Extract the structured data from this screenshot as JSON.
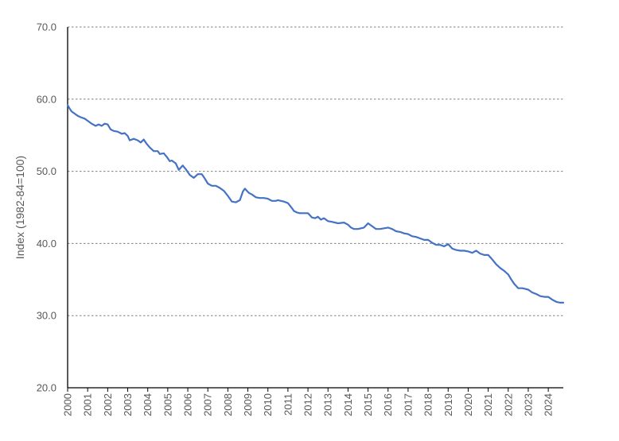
{
  "chart_data": {
    "type": "line",
    "title": "",
    "xlabel": "",
    "ylabel": "Index (1982-84=100)",
    "ylim": [
      20.0,
      70.0
    ],
    "y_ticks": [
      "20.0",
      "30.0",
      "40.0",
      "50.0",
      "60.0",
      "70.0"
    ],
    "x_ticks": [
      "2000",
      "2001",
      "2002",
      "2003",
      "2004",
      "2005",
      "2006",
      "2007",
      "2008",
      "2009",
      "2010",
      "2011",
      "2012",
      "2013",
      "2014",
      "2015",
      "2016",
      "2017",
      "2018",
      "2019",
      "2020",
      "2021",
      "2022",
      "2023",
      "2024"
    ],
    "grid": "horizontal dashed",
    "legend": "none",
    "line_color": "#4472C4",
    "series": [
      {
        "x": [
          2000.0,
          2000.1,
          2000.2,
          2000.35,
          2000.5,
          2000.65,
          2000.85,
          2001.0,
          2001.2,
          2001.4,
          2001.55,
          2001.7,
          2001.85,
          2002.0,
          2002.15,
          2002.3,
          2002.5,
          2002.7,
          2002.85,
          2003.0,
          2003.1,
          2003.3,
          2003.5,
          2003.65,
          2003.8,
          2003.95,
          2004.1,
          2004.3,
          2004.5,
          2004.6,
          2004.8,
          2004.95,
          2005.1,
          2005.2,
          2005.4,
          2005.55,
          2005.75,
          2005.9,
          2006.1,
          2006.3,
          2006.5,
          2006.7,
          2006.85,
          2007.0,
          2007.2,
          2007.4,
          2007.6,
          2007.8,
          2008.0,
          2008.2,
          2008.4,
          2008.6,
          2008.75,
          2008.85,
          2008.95,
          2009.05,
          2009.2,
          2009.4,
          2009.6,
          2009.8,
          2010.0,
          2010.2,
          2010.4,
          2010.5,
          2010.8,
          2011.0,
          2011.2,
          2011.3,
          2011.45,
          2011.6,
          2011.8,
          2012.0,
          2012.2,
          2012.35,
          2012.5,
          2012.65,
          2012.8,
          2013.0,
          2013.2,
          2013.5,
          2013.8,
          2014.0,
          2014.15,
          2014.3,
          2014.5,
          2014.8,
          2015.0,
          2015.2,
          2015.4,
          2015.6,
          2015.8,
          2016.0,
          2016.2,
          2016.4,
          2016.6,
          2016.8,
          2017.0,
          2017.2,
          2017.4,
          2017.6,
          2017.8,
          2018.0,
          2018.2,
          2018.4,
          2018.6,
          2018.8,
          2019.0,
          2019.2,
          2019.4,
          2019.6,
          2019.8,
          2020.0,
          2020.2,
          2020.4,
          2020.6,
          2020.8,
          2021.0,
          2021.2,
          2021.4,
          2021.6,
          2021.8,
          2022.0,
          2022.15,
          2022.3,
          2022.5,
          2022.7,
          2022.85,
          2023.0,
          2023.2,
          2023.4,
          2023.6,
          2023.8,
          2024.0,
          2024.2,
          2024.4,
          2024.6,
          2024.75
        ],
        "values": [
          59.2,
          58.7,
          58.3,
          58.0,
          57.7,
          57.5,
          57.3,
          57.0,
          56.6,
          56.3,
          56.5,
          56.3,
          56.6,
          56.5,
          55.8,
          55.6,
          55.5,
          55.2,
          55.3,
          54.9,
          54.3,
          54.5,
          54.3,
          54.0,
          54.4,
          53.8,
          53.3,
          52.8,
          52.8,
          52.4,
          52.5,
          52.0,
          51.4,
          51.5,
          51.1,
          50.2,
          50.8,
          50.3,
          49.5,
          49.1,
          49.6,
          49.6,
          49.0,
          48.3,
          48.0,
          48.0,
          47.7,
          47.3,
          46.6,
          45.8,
          45.7,
          46.0,
          47.2,
          47.6,
          47.3,
          47.0,
          46.8,
          46.4,
          46.3,
          46.3,
          46.2,
          45.9,
          45.9,
          46.0,
          45.8,
          45.6,
          44.9,
          44.5,
          44.3,
          44.2,
          44.2,
          44.2,
          43.6,
          43.5,
          43.7,
          43.3,
          43.5,
          43.1,
          43.0,
          42.8,
          42.9,
          42.6,
          42.2,
          42.0,
          42.0,
          42.2,
          42.8,
          42.4,
          42.0,
          42.0,
          42.1,
          42.2,
          42.0,
          41.7,
          41.6,
          41.4,
          41.3,
          41.0,
          40.9,
          40.7,
          40.5,
          40.5,
          40.1,
          39.8,
          39.8,
          39.6,
          39.9,
          39.3,
          39.1,
          39.0,
          39.0,
          38.9,
          38.7,
          39.0,
          38.6,
          38.4,
          38.4,
          37.8,
          37.1,
          36.6,
          36.2,
          35.7,
          35.0,
          34.4,
          33.8,
          33.8,
          33.7,
          33.6,
          33.2,
          33.0,
          32.7,
          32.6,
          32.6,
          32.2,
          31.9,
          31.8,
          31.8
        ]
      }
    ]
  }
}
